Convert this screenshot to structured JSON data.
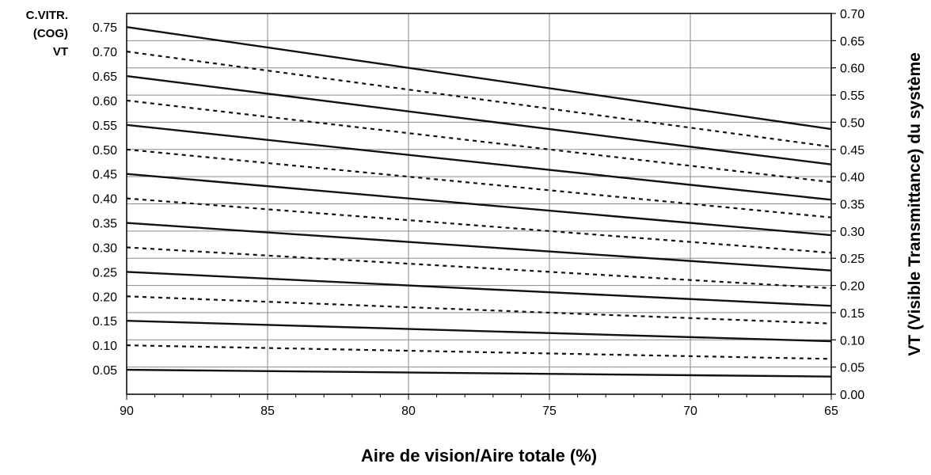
{
  "chart_data": {
    "type": "line",
    "xlabel": "Aire de vision/Aire totale (%)",
    "ylabel_left": [
      "C.VITR.",
      "(COG)",
      "VT"
    ],
    "ylabel_right": "VT (Visible Transmittance) du système",
    "x_ticks": [
      "90",
      "85",
      "80",
      "75",
      "70",
      "65"
    ],
    "xlim": [
      90,
      65
    ],
    "x_reversed": true,
    "left_ticks": [
      "0.05",
      "0.10",
      "0.15",
      "0.20",
      "0.25",
      "0.30",
      "0.35",
      "0.40",
      "0.45",
      "0.50",
      "0.55",
      "0.60",
      "0.65",
      "0.70",
      "0.75"
    ],
    "right_ticks": [
      "0.00",
      "0.05",
      "0.10",
      "0.15",
      "0.20",
      "0.25",
      "0.30",
      "0.35",
      "0.40",
      "0.45",
      "0.50",
      "0.55",
      "0.60",
      "0.65",
      "0.70"
    ],
    "ylim": [
      0,
      0.7
    ],
    "grid": true,
    "series": [
      {
        "cog": 0.75,
        "style": "solid",
        "x": [
          90,
          65
        ],
        "y": [
          0.675,
          0.4875
        ]
      },
      {
        "cog": 0.7,
        "style": "dashed",
        "x": [
          90,
          65
        ],
        "y": [
          0.63,
          0.455
        ]
      },
      {
        "cog": 0.65,
        "style": "solid",
        "x": [
          90,
          65
        ],
        "y": [
          0.585,
          0.4225
        ]
      },
      {
        "cog": 0.6,
        "style": "dashed",
        "x": [
          90,
          65
        ],
        "y": [
          0.54,
          0.39
        ]
      },
      {
        "cog": 0.55,
        "style": "solid",
        "x": [
          90,
          65
        ],
        "y": [
          0.495,
          0.3575
        ]
      },
      {
        "cog": 0.5,
        "style": "dashed",
        "x": [
          90,
          65
        ],
        "y": [
          0.45,
          0.325
        ]
      },
      {
        "cog": 0.45,
        "style": "solid",
        "x": [
          90,
          65
        ],
        "y": [
          0.405,
          0.2925
        ]
      },
      {
        "cog": 0.4,
        "style": "dashed",
        "x": [
          90,
          65
        ],
        "y": [
          0.36,
          0.26
        ]
      },
      {
        "cog": 0.35,
        "style": "solid",
        "x": [
          90,
          65
        ],
        "y": [
          0.315,
          0.2275
        ]
      },
      {
        "cog": 0.3,
        "style": "dashed",
        "x": [
          90,
          65
        ],
        "y": [
          0.27,
          0.195
        ]
      },
      {
        "cog": 0.25,
        "style": "solid",
        "x": [
          90,
          65
        ],
        "y": [
          0.225,
          0.1625
        ]
      },
      {
        "cog": 0.2,
        "style": "dashed",
        "x": [
          90,
          65
        ],
        "y": [
          0.18,
          0.13
        ]
      },
      {
        "cog": 0.15,
        "style": "solid",
        "x": [
          90,
          65
        ],
        "y": [
          0.135,
          0.0975
        ]
      },
      {
        "cog": 0.1,
        "style": "dashed",
        "x": [
          90,
          65
        ],
        "y": [
          0.09,
          0.065
        ]
      },
      {
        "cog": 0.05,
        "style": "solid",
        "x": [
          90,
          65
        ],
        "y": [
          0.045,
          0.0325
        ]
      }
    ]
  }
}
